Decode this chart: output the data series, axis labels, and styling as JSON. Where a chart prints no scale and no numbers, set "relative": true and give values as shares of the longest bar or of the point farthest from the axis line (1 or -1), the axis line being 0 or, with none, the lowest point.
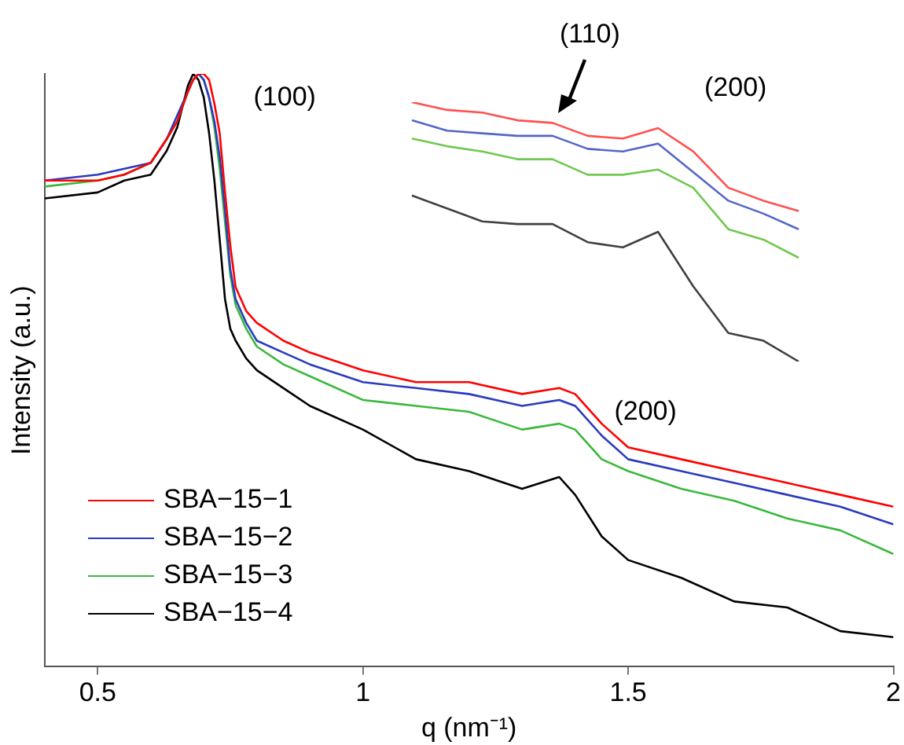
{
  "chart_data": [
    {
      "type": "line",
      "xlabel": "q (nm⁻¹)",
      "ylabel": "Intensity (a.u.)",
      "relative": true,
      "legend": "bottom left",
      "xlim": [
        0.4,
        2
      ],
      "xticks": [
        0.5,
        1,
        1.5,
        2
      ],
      "x": [
        0.4,
        0.5,
        0.55,
        0.6,
        0.63,
        0.65,
        0.67,
        0.68,
        0.69,
        0.7,
        0.71,
        0.72,
        0.73,
        0.74,
        0.75,
        0.76,
        0.78,
        0.8,
        0.85,
        0.9,
        1.0,
        1.1,
        1.2,
        1.3,
        1.37,
        1.4,
        1.45,
        1.5,
        1.6,
        1.7,
        1.8,
        1.9,
        2.0
      ],
      "annotations": [
        {
          "text": "(100)",
          "x": 0.69,
          "y": 1.0
        },
        {
          "text": "(200)",
          "x": 1.37,
          "y": 0.47
        }
      ],
      "series": [
        {
          "name": "SBA−15−1",
          "color": "#ff0000",
          "values": [
            0.82,
            0.82,
            0.83,
            0.85,
            0.89,
            0.92,
            0.97,
            0.99,
            1.0,
            1.0,
            0.99,
            0.95,
            0.9,
            0.8,
            0.71,
            0.64,
            0.6,
            0.58,
            0.55,
            0.53,
            0.5,
            0.48,
            0.48,
            0.46,
            0.47,
            0.46,
            0.41,
            0.37,
            0.35,
            0.33,
            0.31,
            0.29,
            0.27
          ]
        },
        {
          "name": "SBA−15−2",
          "color": "#2a3bbd",
          "values": [
            0.82,
            0.83,
            0.84,
            0.85,
            0.89,
            0.93,
            0.97,
            0.99,
            1.0,
            0.99,
            0.96,
            0.92,
            0.86,
            0.77,
            0.67,
            0.62,
            0.58,
            0.55,
            0.53,
            0.51,
            0.48,
            0.47,
            0.46,
            0.44,
            0.45,
            0.44,
            0.39,
            0.35,
            0.33,
            0.31,
            0.29,
            0.27,
            0.24
          ]
        },
        {
          "name": "SBA−15−3",
          "color": "#3cb83c",
          "values": [
            0.81,
            0.82,
            0.83,
            0.85,
            0.89,
            0.92,
            0.97,
            0.99,
            1.0,
            0.99,
            0.96,
            0.91,
            0.84,
            0.75,
            0.66,
            0.61,
            0.57,
            0.54,
            0.51,
            0.49,
            0.45,
            0.44,
            0.43,
            0.4,
            0.41,
            0.4,
            0.35,
            0.33,
            0.3,
            0.28,
            0.25,
            0.23,
            0.19
          ]
        },
        {
          "name": "SBA−15−4",
          "color": "#000000",
          "values": [
            0.79,
            0.8,
            0.82,
            0.83,
            0.87,
            0.91,
            0.98,
            1.0,
            0.99,
            0.96,
            0.9,
            0.82,
            0.72,
            0.62,
            0.57,
            0.55,
            0.52,
            0.5,
            0.47,
            0.44,
            0.4,
            0.35,
            0.33,
            0.3,
            0.32,
            0.29,
            0.22,
            0.18,
            0.15,
            0.11,
            0.1,
            0.06,
            0.05
          ]
        }
      ]
    },
    {
      "type": "line",
      "relative": true,
      "categories": [
        null,
        null,
        null,
        null,
        null,
        null,
        null,
        null,
        null,
        null,
        null,
        null
      ],
      "annotations": [
        "(110)",
        "(200)"
      ],
      "series": [
        {
          "color": "#ff5050",
          "values": [
            1.0,
            0.97,
            0.96,
            0.93,
            0.92,
            0.87,
            0.86,
            0.9,
            0.81,
            0.67,
            0.62,
            0.58
          ]
        },
        {
          "color": "#5566c8",
          "values": [
            0.93,
            0.89,
            0.88,
            0.87,
            0.87,
            0.82,
            0.81,
            0.84,
            0.73,
            0.62,
            0.57,
            0.51
          ]
        },
        {
          "color": "#70c850",
          "values": [
            0.86,
            0.83,
            0.81,
            0.78,
            0.78,
            0.72,
            0.72,
            0.74,
            0.67,
            0.51,
            0.47,
            0.4
          ]
        },
        {
          "color": "#404040",
          "values": [
            0.64,
            0.59,
            0.54,
            0.53,
            0.53,
            0.46,
            0.44,
            0.5,
            0.29,
            0.11,
            0.08,
            0
          ]
        }
      ]
    }
  ]
}
